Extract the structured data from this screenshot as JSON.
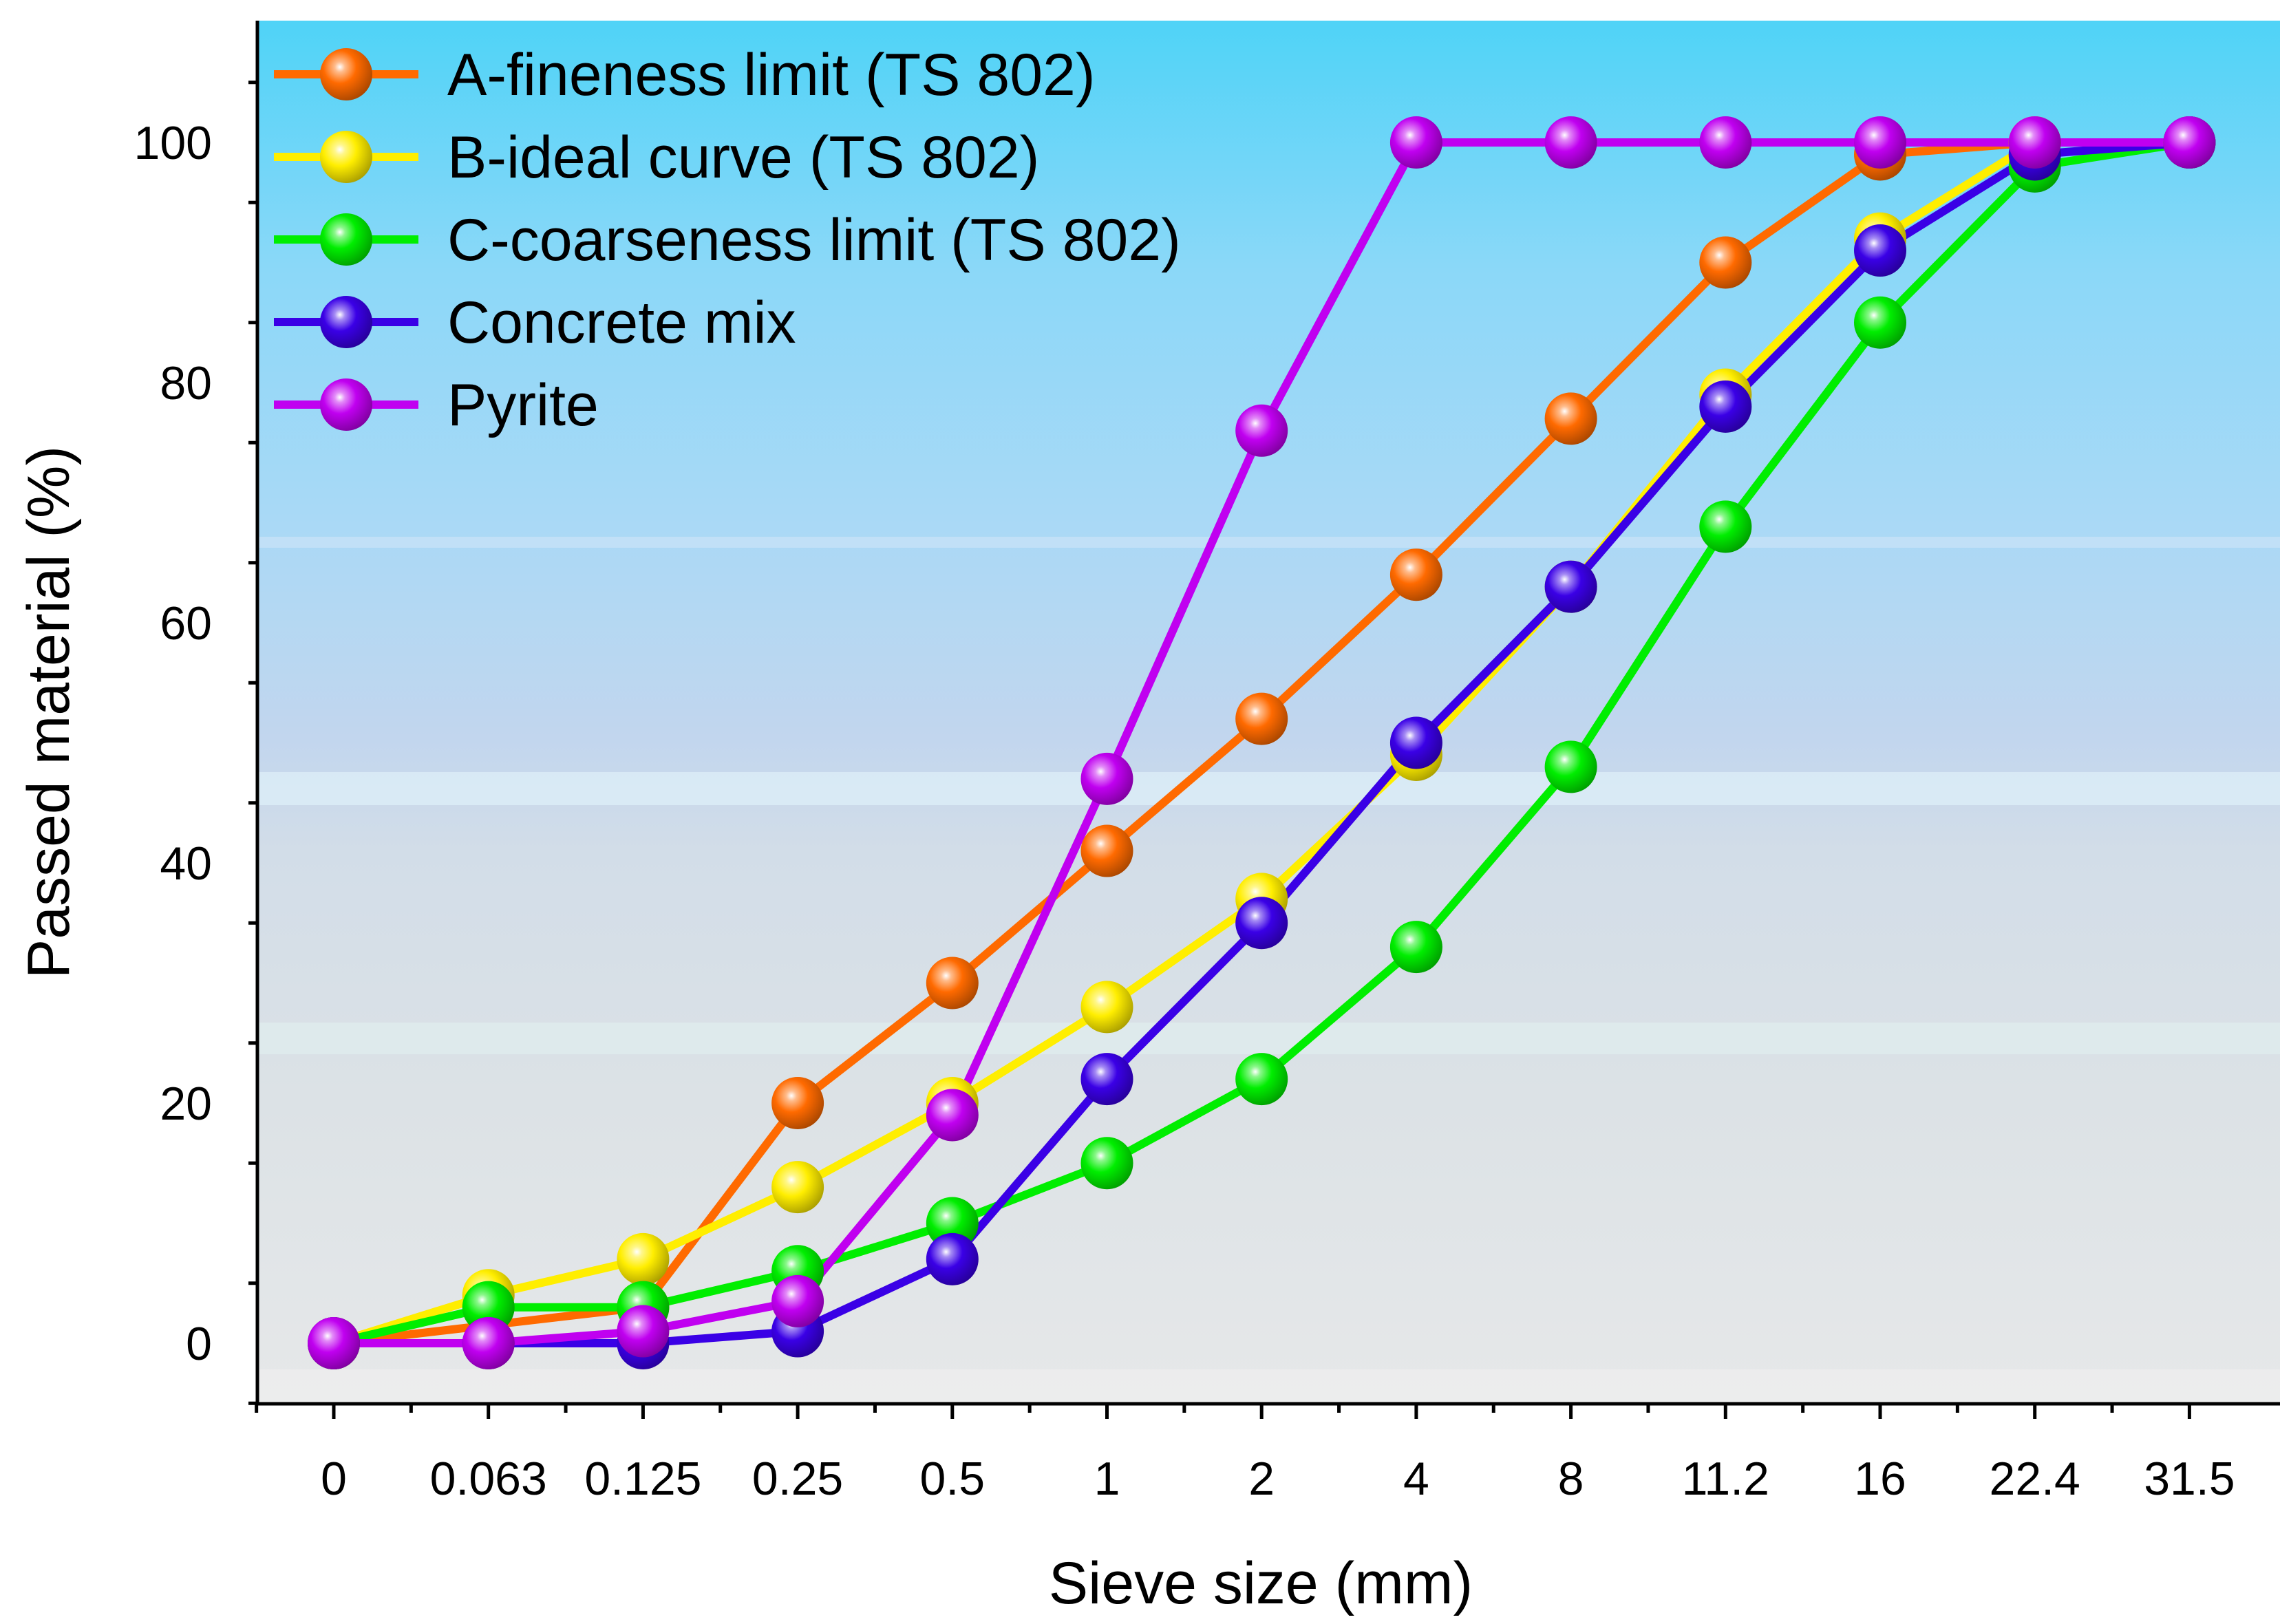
{
  "chart_data": {
    "type": "line",
    "title": "",
    "xlabel": "Sieve size (mm)",
    "ylabel": "Passed material (%)",
    "categories": [
      "0",
      "0.063",
      "0.125",
      "0.25",
      "0.5",
      "1",
      "2",
      "4",
      "8",
      "11.2",
      "16",
      "22.4",
      "31.5"
    ],
    "ylim": [
      -5,
      110
    ],
    "yticks": [
      0,
      20,
      40,
      60,
      80,
      100
    ],
    "ytick_labels": [
      "0",
      "20",
      "40",
      "60",
      "80",
      "100"
    ],
    "legend_position": "top-left",
    "series": [
      {
        "name": "A-fineness limit (TS 802)",
        "color": "#FF6A00",
        "values": [
          0,
          null,
          3,
          20,
          30,
          41,
          52,
          64,
          77,
          90,
          99,
          100,
          100
        ]
      },
      {
        "name": "B-ideal curve (TS 802)",
        "color": "#FFEE00",
        "values": [
          0,
          4,
          7,
          13,
          20,
          28,
          37,
          49,
          63,
          79,
          92,
          100,
          100
        ]
      },
      {
        "name": "C-coarseness limit (TS 802)",
        "color": "#00EE00",
        "values": [
          0,
          3,
          3,
          6,
          10,
          15,
          22,
          33,
          48,
          68,
          85,
          98,
          100
        ]
      },
      {
        "name": "Concrete mix",
        "color": "#3A00E6",
        "values": [
          0,
          0,
          0,
          1,
          7,
          22,
          35,
          50,
          63,
          78,
          91,
          99,
          100
        ]
      },
      {
        "name": "Pyrite",
        "color": "#C000F0",
        "values": [
          0,
          0,
          1,
          3.5,
          19,
          47,
          76,
          100,
          100,
          100,
          100,
          100,
          100
        ]
      }
    ]
  }
}
